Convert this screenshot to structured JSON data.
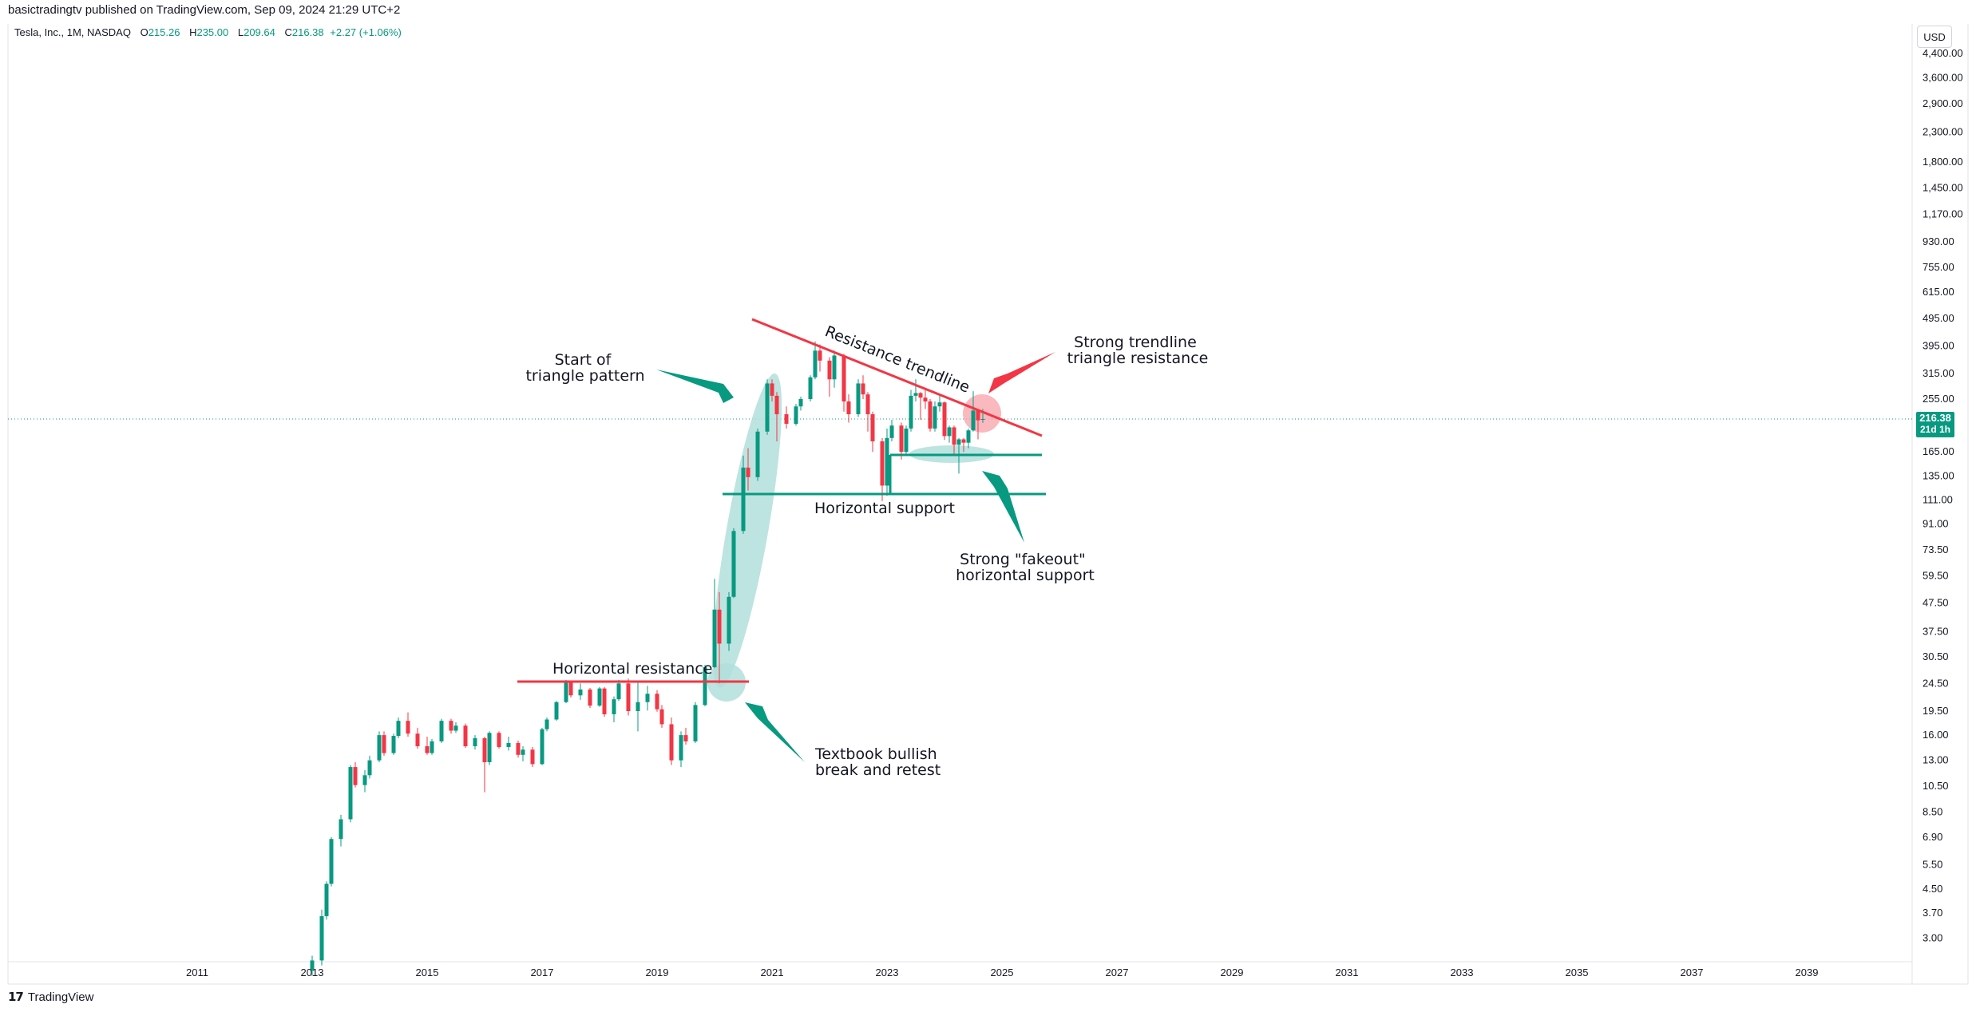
{
  "header": {
    "published": "basictradingtv published on TradingView.com, Sep 09, 2024 21:29 UTC+2",
    "symbol": "Tesla, Inc., 1M, NASDAQ",
    "open_label": "O",
    "open": "215.26",
    "high_label": "H",
    "high": "235.00",
    "low_label": "L",
    "low": "209.64",
    "close_label": "C",
    "close": "216.38",
    "change": "+2.27 (+1.06%)"
  },
  "currency": "USD",
  "footer": {
    "brand": "TradingView"
  },
  "price_label": {
    "price": "216.38",
    "countdown": "21d 1h"
  },
  "colors": {
    "up": "#089981",
    "down": "#f23645",
    "teal_fill": "#b2dfdb",
    "red_fill": "#f7a1a9"
  },
  "chart_data": {
    "type": "candlestick",
    "scale": "log",
    "x_ticks": [
      "2011",
      "2013",
      "2015",
      "2017",
      "2019",
      "2021",
      "2023",
      "2025",
      "2027",
      "2029",
      "2031",
      "2033",
      "2035",
      "2037",
      "2039"
    ],
    "y_ticks": [
      "4,400.00",
      "3,600.00",
      "2,900.00",
      "2,300.00",
      "1,800.00",
      "1,450.00",
      "1,170.00",
      "930.00",
      "755.00",
      "615.00",
      "495.00",
      "395.00",
      "315.00",
      "255.00",
      "165.00",
      "135.00",
      "111.00",
      "91.00",
      "73.50",
      "59.50",
      "47.50",
      "37.50",
      "30.50",
      "24.50",
      "19.50",
      "16.00",
      "13.00",
      "10.50",
      "8.50",
      "6.90",
      "5.50",
      "4.50",
      "3.70",
      "3.00"
    ],
    "grid": false,
    "last_price": 216.38,
    "series": [
      {
        "values": [
          [
            "2013-01",
            2.3,
            2.6,
            2.2,
            2.5
          ],
          [
            "2013-03",
            2.5,
            3.8,
            2.4,
            3.6
          ],
          [
            "2013-04",
            3.6,
            4.8,
            3.5,
            4.7
          ],
          [
            "2013-05",
            4.7,
            6.9,
            4.6,
            6.8
          ],
          [
            "2013-07",
            6.8,
            8.3,
            6.4,
            8.0
          ],
          [
            "2013-09",
            8.0,
            12.5,
            7.8,
            12.3
          ],
          [
            "2013-10",
            12.3,
            12.8,
            10.4,
            10.6
          ],
          [
            "2013-12",
            10.6,
            12.0,
            10.0,
            11.5
          ],
          [
            "2014-01",
            11.5,
            13.5,
            11.2,
            13.0
          ],
          [
            "2014-03",
            13.0,
            16.5,
            12.8,
            16.0
          ],
          [
            "2014-04",
            16.0,
            16.5,
            13.5,
            13.8
          ],
          [
            "2014-06",
            13.8,
            16.2,
            13.6,
            15.9
          ],
          [
            "2014-07",
            15.9,
            18.5,
            15.6,
            18.0
          ],
          [
            "2014-09",
            18.0,
            19.3,
            15.8,
            16.2
          ],
          [
            "2014-11",
            16.2,
            17.0,
            14.3,
            14.6
          ],
          [
            "2015-01",
            14.6,
            15.8,
            13.6,
            13.8
          ],
          [
            "2015-02",
            13.8,
            15.5,
            13.6,
            15.2
          ],
          [
            "2015-04",
            15.2,
            18.3,
            15.0,
            18.0
          ],
          [
            "2015-06",
            18.0,
            18.3,
            16.2,
            16.6
          ],
          [
            "2015-07",
            16.6,
            17.8,
            16.3,
            17.3
          ],
          [
            "2015-09",
            17.3,
            17.6,
            14.4,
            14.6
          ],
          [
            "2015-11",
            14.6,
            16.0,
            14.2,
            15.6
          ],
          [
            "2016-01",
            15.6,
            15.8,
            10.0,
            12.8
          ],
          [
            "2016-02",
            12.8,
            16.5,
            12.5,
            16.3
          ],
          [
            "2016-04",
            16.3,
            16.5,
            14.3,
            14.5
          ],
          [
            "2016-06",
            14.5,
            15.8,
            14.1,
            15.0
          ],
          [
            "2016-08",
            15.0,
            15.3,
            13.3,
            13.6
          ],
          [
            "2016-09",
            13.6,
            14.6,
            12.9,
            14.2
          ],
          [
            "2016-11",
            14.2,
            14.5,
            12.3,
            12.6
          ],
          [
            "2017-01",
            12.6,
            17.0,
            12.5,
            16.8
          ],
          [
            "2017-02",
            16.8,
            18.5,
            16.5,
            18.2
          ],
          [
            "2017-04",
            18.2,
            21.2,
            18.0,
            21.0
          ],
          [
            "2017-06",
            21.0,
            25.2,
            20.8,
            24.8
          ],
          [
            "2017-07",
            24.8,
            25.0,
            21.8,
            22.2
          ],
          [
            "2017-09",
            22.2,
            24.5,
            21.4,
            23.3
          ],
          [
            "2017-11",
            23.3,
            23.6,
            20.0,
            20.4
          ],
          [
            "2018-01",
            20.4,
            23.8,
            20.2,
            23.5
          ],
          [
            "2018-02",
            23.5,
            23.8,
            18.6,
            19.0
          ],
          [
            "2018-04",
            19.0,
            22.0,
            17.8,
            21.5
          ],
          [
            "2018-05",
            21.5,
            25.2,
            21.2,
            24.5
          ],
          [
            "2018-07",
            24.5,
            25.5,
            18.8,
            19.5
          ],
          [
            "2018-09",
            19.5,
            24.8,
            16.5,
            21.0
          ],
          [
            "2018-11",
            21.0,
            24.0,
            19.6,
            22.5
          ],
          [
            "2019-01",
            22.5,
            23.2,
            19.4,
            19.8
          ],
          [
            "2019-02",
            19.8,
            20.5,
            17.0,
            17.5
          ],
          [
            "2019-04",
            17.5,
            18.5,
            12.5,
            13.0
          ],
          [
            "2019-06",
            13.0,
            16.5,
            12.3,
            16.0
          ],
          [
            "2019-07",
            16.0,
            17.0,
            14.8,
            15.2
          ],
          [
            "2019-09",
            15.2,
            21.0,
            15.0,
            20.5
          ],
          [
            "2019-11",
            20.5,
            28.5,
            20.3,
            28.0
          ],
          [
            "2020-01",
            28.0,
            58.0,
            27.8,
            45.0
          ],
          [
            "2020-02",
            45.0,
            52.0,
            24.5,
            34.0
          ],
          [
            "2020-04",
            34.0,
            52.0,
            32.0,
            50.0
          ],
          [
            "2020-05",
            50.0,
            88.0,
            49.5,
            86.0
          ],
          [
            "2020-07",
            86.0,
            160.0,
            84.0,
            145.0
          ],
          [
            "2020-08",
            145.0,
            170.0,
            120.0,
            134.0
          ],
          [
            "2020-10",
            134.0,
            200.0,
            130.0,
            195.0
          ],
          [
            "2020-12",
            195.0,
            300.0,
            190.0,
            290.0
          ],
          [
            "2021-01",
            290.0,
            300.0,
            250.0,
            262.0
          ],
          [
            "2021-02",
            262.0,
            270.0,
            180.0,
            225.0
          ],
          [
            "2021-04",
            225.0,
            240.0,
            200.0,
            208.0
          ],
          [
            "2021-06",
            208.0,
            245.0,
            205.0,
            240.0
          ],
          [
            "2021-07",
            240.0,
            260.0,
            232.0,
            255.0
          ],
          [
            "2021-09",
            255.0,
            310.0,
            250.0,
            305.0
          ],
          [
            "2021-10",
            305.0,
            410.0,
            300.0,
            380.0
          ],
          [
            "2021-11",
            380.0,
            400.0,
            320.0,
            350.0
          ],
          [
            "2022-01",
            350.0,
            360.0,
            260.0,
            300.0
          ],
          [
            "2022-02",
            300.0,
            380.0,
            280.0,
            365.0
          ],
          [
            "2022-04",
            365.0,
            370.0,
            230.0,
            250.0
          ],
          [
            "2022-05",
            250.0,
            265.0,
            210.0,
            225.0
          ],
          [
            "2022-07",
            225.0,
            300.0,
            220.0,
            290.0
          ],
          [
            "2022-08",
            290.0,
            310.0,
            255.0,
            265.0
          ],
          [
            "2022-09",
            265.0,
            270.0,
            195.0,
            225.0
          ],
          [
            "2022-10",
            225.0,
            230.0,
            165.0,
            180.0
          ],
          [
            "2022-12",
            180.0,
            185.0,
            110.0,
            125.0
          ],
          [
            "2023-01",
            125.0,
            200.0,
            115.0,
            185.0
          ],
          [
            "2023-02",
            185.0,
            215.0,
            180.0,
            205.0
          ],
          [
            "2023-04",
            205.0,
            210.0,
            155.0,
            165.0
          ],
          [
            "2023-05",
            165.0,
            205.0,
            160.0,
            200.0
          ],
          [
            "2023-06",
            200.0,
            275.0,
            195.0,
            262.0
          ],
          [
            "2023-07",
            262.0,
            300.0,
            250.0,
            268.0
          ],
          [
            "2023-08",
            268.0,
            270.0,
            215.0,
            258.0
          ],
          [
            "2023-09",
            258.0,
            280.0,
            235.0,
            250.0
          ],
          [
            "2023-10",
            250.0,
            255.0,
            195.0,
            200.0
          ],
          [
            "2023-11",
            200.0,
            250.0,
            195.0,
            240.0
          ],
          [
            "2023-12",
            240.0,
            265.0,
            230.0,
            248.0
          ],
          [
            "2024-01",
            248.0,
            250.0,
            182.0,
            188.0
          ],
          [
            "2024-02",
            188.0,
            205.0,
            178.0,
            202.0
          ],
          [
            "2024-03",
            202.0,
            205.0,
            162.0,
            175.0
          ],
          [
            "2024-04",
            175.0,
            185.0,
            138.0,
            183.0
          ],
          [
            "2024-05",
            183.0,
            185.0,
            165.0,
            178.0
          ],
          [
            "2024-06",
            178.0,
            200.0,
            170.0,
            197.0
          ],
          [
            "2024-07",
            197.0,
            272.0,
            195.0,
            232.0
          ],
          [
            "2024-08",
            232.0,
            235.0,
            183.0,
            214.0
          ],
          [
            "2024-09",
            215.26,
            235.0,
            209.64,
            216.38
          ]
        ]
      }
    ],
    "annotations": [
      {
        "text": "Resistance trendline",
        "color": "#f23645"
      },
      {
        "text": "Strong trendline\ntriangle resistance",
        "color": "#f23645"
      },
      {
        "text": "Start of\ntriangle pattern",
        "color": "#089981"
      },
      {
        "text": "Horizontal support",
        "color": "#089981"
      },
      {
        "text": "Strong \"fakeout\"\nhorizontal support",
        "color": "#089981"
      },
      {
        "text": "Horizontal resistance",
        "color": "#f23645"
      },
      {
        "text": "Textbook bullish\nbreak and retest",
        "color": "#089981"
      }
    ]
  }
}
